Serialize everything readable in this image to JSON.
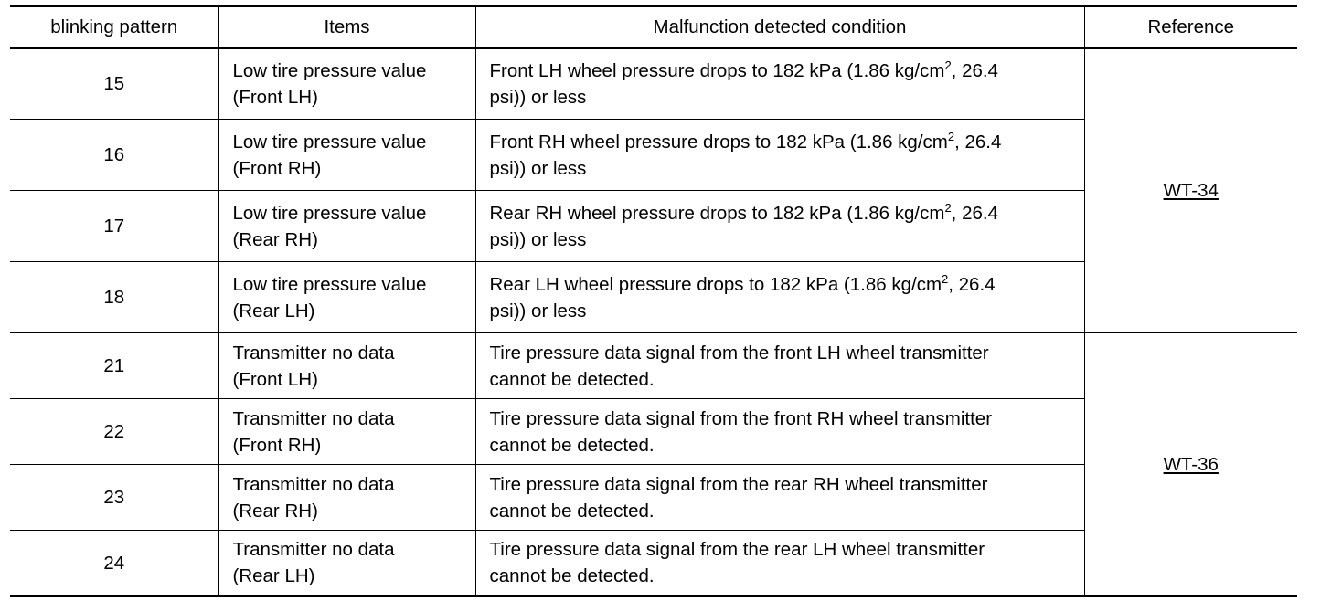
{
  "table": {
    "headers": {
      "pattern": "blinking pattern",
      "items": "Items",
      "condition": "Malfunction detected condition",
      "reference": "Reference"
    },
    "rows": [
      {
        "pattern": "15",
        "item_line1": "Low tire pressure value",
        "item_line2": "(Front LH)",
        "cond_pre": "Front LH wheel pressure drops to 182 kPa (1.86 kg/cm",
        "cond_sup": "2",
        "cond_post": ", 26.4",
        "cond_line2": "psi)) or less"
      },
      {
        "pattern": "16",
        "item_line1": "Low tire pressure value",
        "item_line2": "(Front RH)",
        "cond_pre": "Front RH wheel pressure drops to 182 kPa (1.86 kg/cm",
        "cond_sup": "2",
        "cond_post": ", 26.4",
        "cond_line2": "psi)) or less"
      },
      {
        "pattern": "17",
        "item_line1": "Low tire pressure value",
        "item_line2": "(Rear RH)",
        "cond_pre": "Rear RH wheel pressure drops to 182 kPa (1.86 kg/cm",
        "cond_sup": "2",
        "cond_post": ", 26.4",
        "cond_line2": "psi)) or less"
      },
      {
        "pattern": "18",
        "item_line1": "Low tire pressure value",
        "item_line2": "(Rear LH)",
        "cond_pre": "Rear LH wheel pressure drops to 182 kPa (1.86 kg/cm",
        "cond_sup": "2",
        "cond_post": ", 26.4",
        "cond_line2": "psi)) or less"
      },
      {
        "pattern": "21",
        "item_line1": "Transmitter no data",
        "item_line2": "(Front LH)",
        "cond_pre": "Tire pressure data signal from the front LH wheel transmitter",
        "cond_line2": "cannot be detected."
      },
      {
        "pattern": "22",
        "item_line1": "Transmitter no data",
        "item_line2": "(Front RH)",
        "cond_pre": "Tire pressure data signal from the front RH wheel transmitter",
        "cond_line2": "cannot be detected."
      },
      {
        "pattern": "23",
        "item_line1": "Transmitter no data",
        "item_line2": "(Rear RH)",
        "cond_pre": "Tire pressure data signal from the rear RH wheel transmitter",
        "cond_line2": "cannot be detected."
      },
      {
        "pattern": "24",
        "item_line1": "Transmitter no data",
        "item_line2": "(Rear LH)",
        "cond_pre": "Tire pressure data signal from the rear LH wheel transmitter",
        "cond_line2": "cannot be detected."
      }
    ],
    "references": [
      {
        "label": "WT-34"
      },
      {
        "label": "WT-36"
      }
    ]
  }
}
